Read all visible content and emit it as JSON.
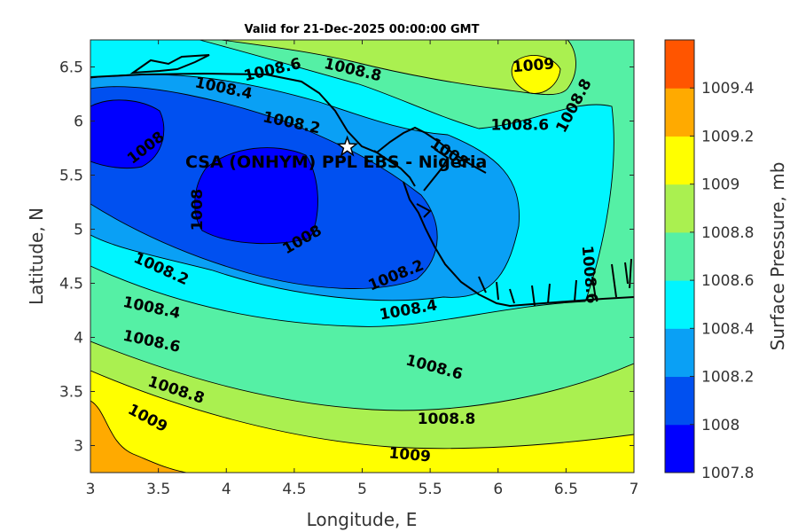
{
  "chart_data": {
    "type": "contour",
    "title": "Valid for 21-Dec-2025 00:00:00 GMT",
    "xlabel": "Longitude, E",
    "ylabel": "Latitude, N",
    "colorbar_label": "Surface Pressure, mb",
    "xlim": [
      3,
      7
    ],
    "ylim": [
      2.75,
      6.75
    ],
    "xticks": [
      "3",
      "3.5",
      "4",
      "4.5",
      "5",
      "5.5",
      "6",
      "6.5",
      "7"
    ],
    "yticks": [
      "3",
      "3.5",
      "4",
      "4.5",
      "5",
      "5.5",
      "6",
      "6.5"
    ],
    "levels": [
      "1007.8",
      "1008",
      "1008.2",
      "1008.4",
      "1008.6",
      "1008.8",
      "1009",
      "1009.2",
      "1009.4"
    ],
    "colors": [
      "#0000ff",
      "#0050f0",
      "#0aa0f5",
      "#00f5ff",
      "#55f0a5",
      "#aaf050",
      "#ffff00",
      "#ffaa00",
      "#ff5500"
    ],
    "contour_labels": [
      {
        "text": "1008.6",
        "lon": 4.34,
        "lat": 6.47
      },
      {
        "text": "1008.8",
        "lon": 4.93,
        "lat": 6.47
      },
      {
        "text": "1008.4",
        "lon": 3.98,
        "lat": 6.3
      },
      {
        "text": "1008.2",
        "lon": 4.48,
        "lat": 5.98
      },
      {
        "text": "1008",
        "lon": 3.41,
        "lat": 5.75
      },
      {
        "text": "1008",
        "lon": 3.79,
        "lat": 5.18
      },
      {
        "text": "1008",
        "lon": 4.56,
        "lat": 4.9
      },
      {
        "text": "1008",
        "lon": 5.64,
        "lat": 5.7
      },
      {
        "text": "1009",
        "lon": 6.26,
        "lat": 6.51
      },
      {
        "text": "1008.8",
        "lon": 6.56,
        "lat": 6.14
      },
      {
        "text": "1008.6",
        "lon": 6.16,
        "lat": 5.96
      },
      {
        "text": "1008.6",
        "lon": 6.67,
        "lat": 4.58
      },
      {
        "text": "1008.2",
        "lon": 3.52,
        "lat": 4.63
      },
      {
        "text": "1008.2",
        "lon": 5.25,
        "lat": 4.57
      },
      {
        "text": "1008.4",
        "lon": 3.45,
        "lat": 4.27
      },
      {
        "text": "1008.4",
        "lon": 5.34,
        "lat": 4.25
      },
      {
        "text": "1008.6",
        "lon": 3.45,
        "lat": 3.96
      },
      {
        "text": "1008.6",
        "lon": 5.53,
        "lat": 3.72
      },
      {
        "text": "1008.8",
        "lon": 3.63,
        "lat": 3.51
      },
      {
        "text": "1008.8",
        "lon": 5.62,
        "lat": 3.24
      },
      {
        "text": "1009",
        "lon": 3.42,
        "lat": 3.25
      },
      {
        "text": "1009",
        "lon": 5.35,
        "lat": 2.91
      }
    ],
    "site": {
      "name": "CSA (ONHYM) PPL EBS - Nigeria",
      "lon": 4.89,
      "lat": 5.76
    }
  }
}
